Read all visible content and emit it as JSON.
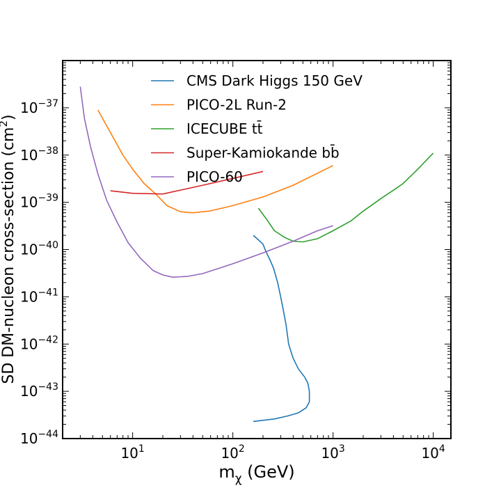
{
  "chart_data": {
    "type": "line",
    "x_scale": "log",
    "y_scale": "log",
    "xlabel": "m",
    "xlabel_sub": "χ",
    "xlabel_unit": " (GeV)",
    "ylabel": "SD DM-nucleon cross-section (cm",
    "ylabel_sup": "2",
    "ylabel_close": ")",
    "xlim": [
      2.0,
      15000
    ],
    "ylim": [
      1e-44,
      1e-36
    ],
    "x_ticks": [
      {
        "value": 10,
        "base": "10",
        "exp": "1"
      },
      {
        "value": 100,
        "base": "10",
        "exp": "2"
      },
      {
        "value": 1000,
        "base": "10",
        "exp": "3"
      },
      {
        "value": 10000,
        "base": "10",
        "exp": "4"
      }
    ],
    "y_ticks": [
      {
        "value": 1e-44,
        "base": "10",
        "exp": "−44"
      },
      {
        "value": 1e-43,
        "base": "10",
        "exp": "−43"
      },
      {
        "value": 1e-42,
        "base": "10",
        "exp": "−42"
      },
      {
        "value": 1e-41,
        "base": "10",
        "exp": "−41"
      },
      {
        "value": 1e-40,
        "base": "10",
        "exp": "−40"
      },
      {
        "value": 1e-39,
        "base": "10",
        "exp": "−39"
      },
      {
        "value": 1e-38,
        "base": "10",
        "exp": "−38"
      },
      {
        "value": 1e-37,
        "base": "10",
        "exp": "−37"
      }
    ],
    "grid": false,
    "legend_position": "top-center",
    "series": [
      {
        "name": "CMS Dark Higgs 150 GeV",
        "color": "#1f77b4",
        "points": [
          [
            160,
            2e-40
          ],
          [
            180,
            1.6e-40
          ],
          [
            200,
            1.3e-40
          ],
          [
            210,
            1e-40
          ],
          [
            220,
            8e-41
          ],
          [
            235,
            6e-41
          ],
          [
            255,
            4e-41
          ],
          [
            280,
            2e-41
          ],
          [
            300,
            1e-41
          ],
          [
            320,
            5e-42
          ],
          [
            340,
            2.5e-42
          ],
          [
            360,
            1e-42
          ],
          [
            400,
            5e-43
          ],
          [
            450,
            3e-43
          ],
          [
            520,
            2e-43
          ],
          [
            560,
            1.5e-43
          ],
          [
            580,
            1e-43
          ],
          [
            580,
            6e-44
          ],
          [
            540,
            4.5e-44
          ],
          [
            450,
            3.5e-44
          ],
          [
            350,
            3e-44
          ],
          [
            260,
            2.6e-44
          ],
          [
            160,
            2.3e-44
          ]
        ]
      },
      {
        "name": "PICO-2L Run-2",
        "color": "#ff7f0e",
        "points": [
          [
            4.5,
            9e-38
          ],
          [
            6,
            3e-38
          ],
          [
            8,
            1e-38
          ],
          [
            10,
            5e-39
          ],
          [
            13,
            2.5e-39
          ],
          [
            17,
            1.5e-39
          ],
          [
            22,
            8.5e-40
          ],
          [
            30,
            6.3e-40
          ],
          [
            40,
            6e-40
          ],
          [
            60,
            6.6e-40
          ],
          [
            100,
            8.5e-40
          ],
          [
            200,
            1.3e-39
          ],
          [
            400,
            2.3e-39
          ],
          [
            1000,
            6e-39
          ]
        ]
      },
      {
        "name": "ICECUBE tt̄",
        "color": "#2ca02c",
        "points": [
          [
            180,
            7.5e-40
          ],
          [
            220,
            4.2e-40
          ],
          [
            260,
            2.5e-40
          ],
          [
            330,
            1.8e-40
          ],
          [
            400,
            1.5e-40
          ],
          [
            500,
            1.45e-40
          ],
          [
            700,
            1.7e-40
          ],
          [
            1000,
            2.5e-40
          ],
          [
            1500,
            4e-40
          ],
          [
            2000,
            6.5e-40
          ],
          [
            3000,
            1.2e-39
          ],
          [
            4000,
            1.8e-39
          ],
          [
            5000,
            2.5e-39
          ],
          [
            7000,
            5e-39
          ],
          [
            10000,
            1.1e-38
          ]
        ]
      },
      {
        "name": "Super-Kamiokande bb̄",
        "color": "#d62728",
        "points": [
          [
            6,
            1.75e-39
          ],
          [
            10,
            1.55e-39
          ],
          [
            20,
            1.5e-39
          ],
          [
            50,
            2.3e-39
          ],
          [
            100,
            3.2e-39
          ],
          [
            200,
            4.5e-39
          ]
        ]
      },
      {
        "name": "PICO-60",
        "color": "#9467bd",
        "points": [
          [
            3,
            2.8e-37
          ],
          [
            3.3,
            6e-38
          ],
          [
            3.8,
            1.5e-38
          ],
          [
            4.5,
            4e-39
          ],
          [
            5.5,
            1.1e-39
          ],
          [
            7,
            3.8e-40
          ],
          [
            9,
            1.4e-40
          ],
          [
            12,
            6.5e-41
          ],
          [
            16,
            3.6e-41
          ],
          [
            20,
            2.9e-41
          ],
          [
            25,
            2.6e-41
          ],
          [
            35,
            2.7e-41
          ],
          [
            50,
            3.1e-41
          ],
          [
            100,
            5e-41
          ],
          [
            200,
            8.5e-41
          ],
          [
            400,
            1.5e-40
          ],
          [
            700,
            2.5e-40
          ],
          [
            1000,
            3.2e-40
          ]
        ]
      }
    ]
  }
}
